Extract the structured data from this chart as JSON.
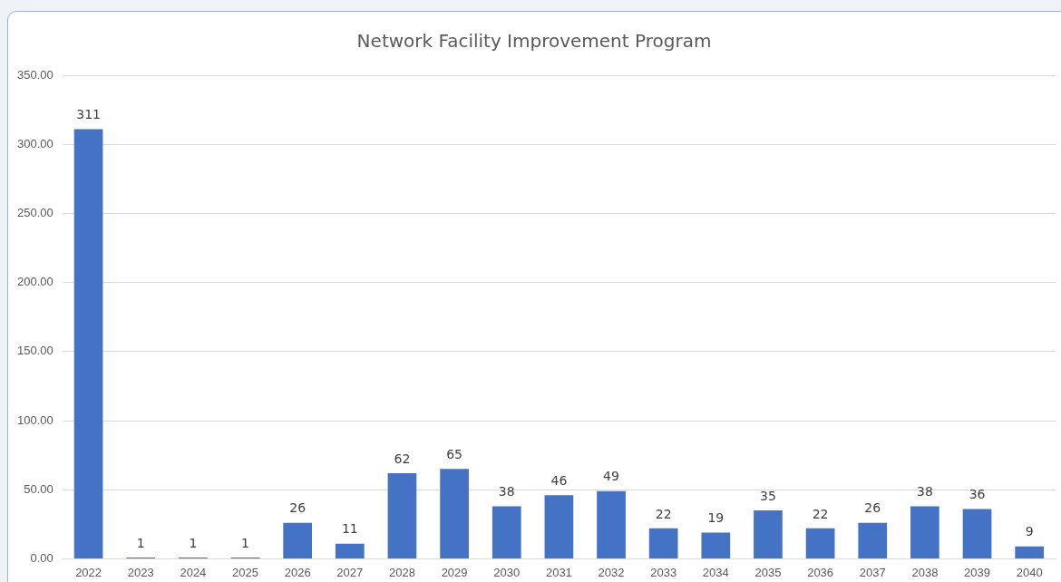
{
  "chart_data": {
    "type": "bar",
    "title": "Network Facility Improvement Program",
    "categories": [
      "2022",
      "2023",
      "2024",
      "2025",
      "2026",
      "2027",
      "2028",
      "2029",
      "2030",
      "2031",
      "2032",
      "2033",
      "2034",
      "2035",
      "2036",
      "2037",
      "2038",
      "2039",
      "2040"
    ],
    "values": [
      311,
      1,
      1,
      1,
      26,
      11,
      62,
      65,
      38,
      46,
      49,
      22,
      19,
      35,
      22,
      26,
      38,
      36,
      9
    ],
    "color": "#4472c4",
    "ylim": [
      0,
      350
    ],
    "yticks": [
      {
        "value": 0,
        "label": "0.00"
      },
      {
        "value": 50,
        "label": "50.00"
      },
      {
        "value": 100,
        "label": "100.00"
      },
      {
        "value": 150,
        "label": "150.00"
      },
      {
        "value": 200,
        "label": "200.00"
      },
      {
        "value": 250,
        "label": "250.00"
      },
      {
        "value": 300,
        "label": "300.00"
      },
      {
        "value": 350,
        "label": "350.00"
      }
    ],
    "grid": "y",
    "data_labels": true
  }
}
